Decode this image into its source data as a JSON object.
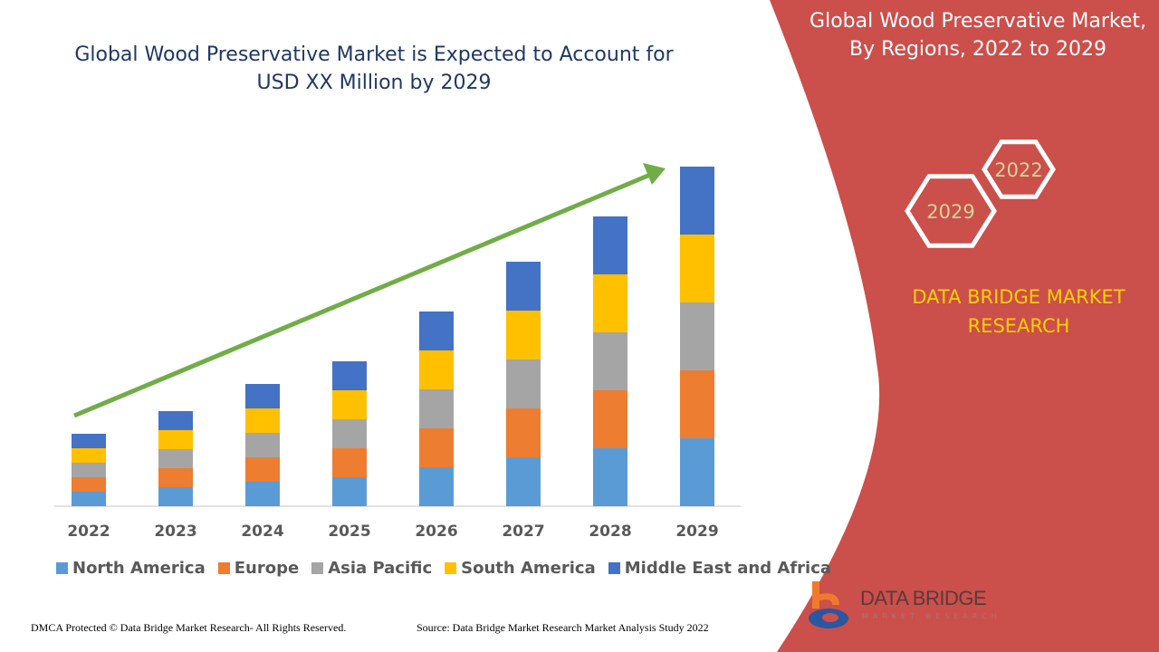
{
  "title": "Global Wood Preservative Market is Expected to Account for USD XX Million by 2029",
  "side_panel": {
    "title": "Global Wood Preservative Market, By Regions, 2022 to 2029",
    "hex_labels": [
      "2022",
      "2029"
    ],
    "brand": "DATA BRIDGE MARKET RESEARCH",
    "logo_text": "DATA BRIDGE",
    "logo_sub": "MARKET RESEARCH",
    "panel_color": "#cb4f4b"
  },
  "footer": {
    "left": "DMCA Protected © Data Bridge Market Research- All Rights Reserved.",
    "right": "Source: Data Bridge Market Research Market Analysis Study 2022"
  },
  "chart_data": {
    "type": "bar",
    "stacked": true,
    "categories": [
      "2022",
      "2023",
      "2024",
      "2025",
      "2026",
      "2027",
      "2028",
      "2029"
    ],
    "series": [
      {
        "name": "North America",
        "color": "#5b9bd5",
        "values": [
          16,
          21,
          27,
          32,
          43,
          54,
          64,
          75
        ]
      },
      {
        "name": "Europe",
        "color": "#ed7d31",
        "values": [
          16,
          21,
          27,
          32,
          43,
          54,
          64,
          75
        ]
      },
      {
        "name": "Asia Pacific",
        "color": "#a5a5a5",
        "values": [
          16,
          21,
          27,
          32,
          43,
          54,
          64,
          75
        ]
      },
      {
        "name": "South America",
        "color": "#ffc000",
        "values": [
          16,
          21,
          27,
          32,
          43,
          54,
          64,
          75
        ]
      },
      {
        "name": "Middle East and Africa",
        "color": "#4472c4",
        "values": [
          16,
          21,
          27,
          32,
          43,
          54,
          64,
          75
        ]
      }
    ],
    "ylim": [
      0,
      400
    ],
    "y_axis_shown": false,
    "grid": false,
    "legend_position": "bottom",
    "trend_arrow_color": "#70ad47"
  }
}
